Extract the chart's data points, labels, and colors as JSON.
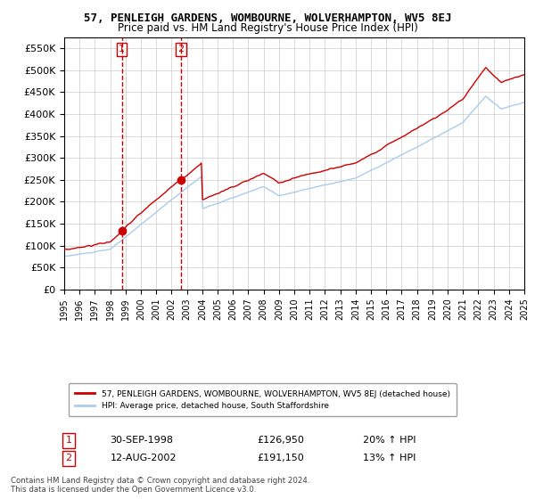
{
  "title": "57, PENLEIGH GARDENS, WOMBOURNE, WOLVERHAMPTON, WV5 8EJ",
  "subtitle": "Price paid vs. HM Land Registry's House Price Index (HPI)",
  "legend_line1": "57, PENLEIGH GARDENS, WOMBOURNE, WOLVERHAMPTON, WV5 8EJ (detached house)",
  "legend_line2": "HPI: Average price, detached house, South Staffordshire",
  "transaction1_label": "1",
  "transaction1_date": "30-SEP-1998",
  "transaction1_price": "£126,950",
  "transaction1_hpi": "20% ↑ HPI",
  "transaction1_year": 1998.75,
  "transaction1_value": 126950,
  "transaction2_label": "2",
  "transaction2_date": "12-AUG-2002",
  "transaction2_price": "£191,150",
  "transaction2_hpi": "13% ↑ HPI",
  "transaction2_year": 2002.62,
  "transaction2_value": 191150,
  "red_color": "#cc0000",
  "blue_color": "#aaccee",
  "background_color": "#ffffff",
  "grid_color": "#cccccc",
  "footer": "Contains HM Land Registry data © Crown copyright and database right 2024.\nThis data is licensed under the Open Government Licence v3.0.",
  "ylim": [
    0,
    575000
  ],
  "yticks": [
    0,
    50000,
    100000,
    150000,
    200000,
    250000,
    300000,
    350000,
    400000,
    450000,
    500000,
    550000
  ],
  "xstart": 1995,
  "xend": 2025
}
